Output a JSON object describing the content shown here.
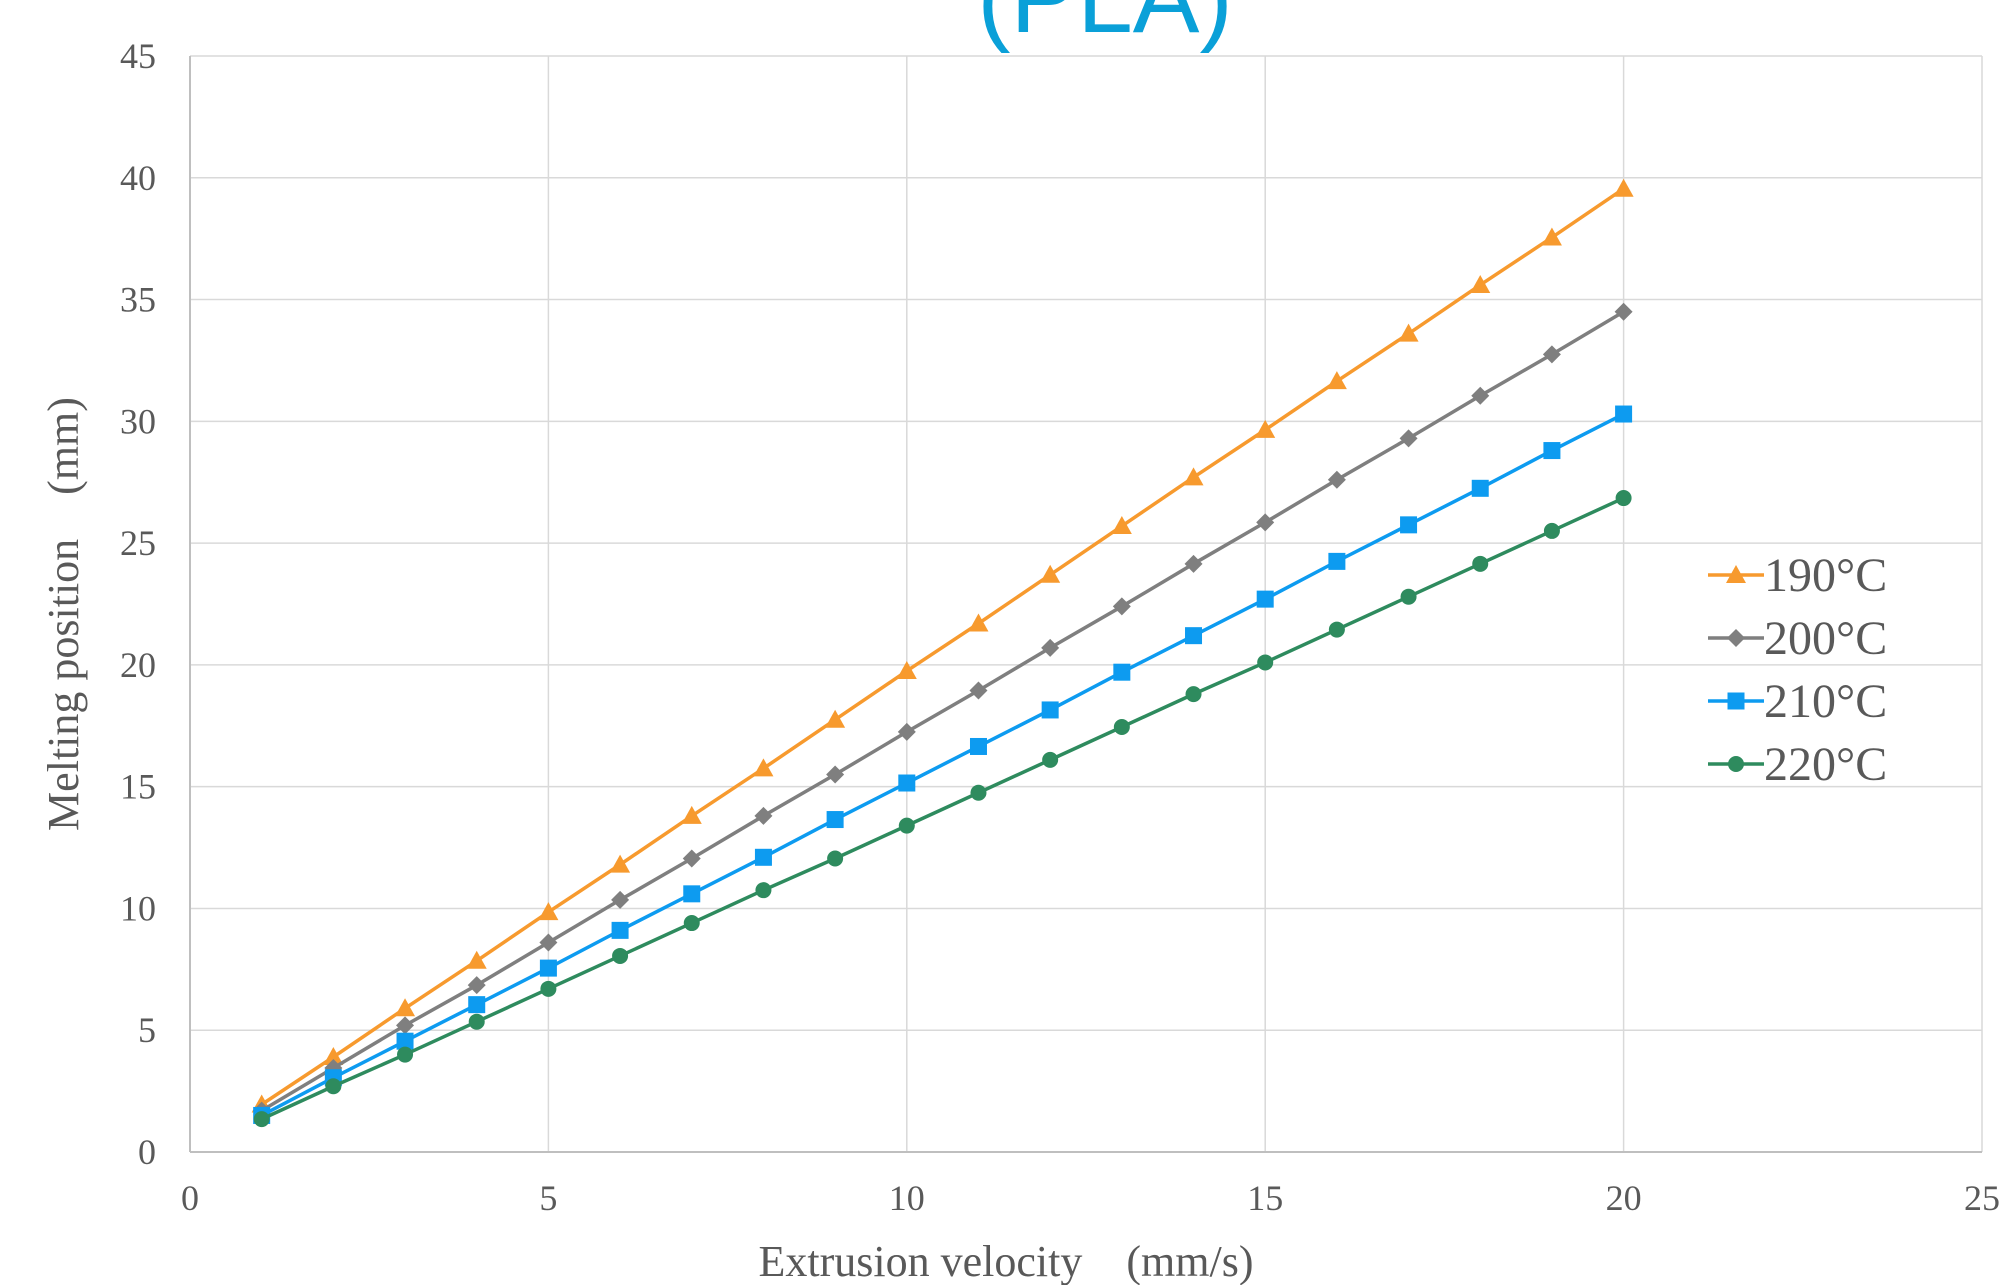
{
  "chart_data": {
    "type": "line",
    "title": "(PLA)",
    "xlabel": "Extrusion velocity　(mm/s)",
    "ylabel": "Melting position　(mm)",
    "xlim": [
      0,
      25
    ],
    "ylim": [
      0,
      45
    ],
    "x_ticks": [
      "0",
      "5",
      "10",
      "15",
      "20",
      "25"
    ],
    "y_ticks": [
      "0",
      "5",
      "10",
      "15",
      "20",
      "25",
      "30",
      "35",
      "40",
      "45"
    ],
    "grid": true,
    "legend_position": "right",
    "x": [
      1,
      2,
      3,
      4,
      5,
      6,
      7,
      8,
      9,
      10,
      11,
      12,
      13,
      14,
      15,
      16,
      17,
      18,
      19,
      20
    ],
    "series": [
      {
        "name": "190°C",
        "color": "#F79A2E",
        "marker": "triangle",
        "values": [
          1.95,
          3.9,
          5.9,
          7.85,
          9.85,
          11.8,
          13.8,
          15.75,
          17.75,
          19.75,
          21.7,
          23.7,
          25.7,
          27.7,
          29.65,
          31.65,
          33.6,
          35.6,
          37.55,
          39.55
        ]
      },
      {
        "name": "200°C",
        "color": "#7F7F7F",
        "marker": "diamond",
        "values": [
          1.7,
          3.45,
          5.2,
          6.85,
          8.6,
          10.35,
          12.05,
          13.8,
          15.5,
          17.25,
          18.95,
          20.7,
          22.4,
          24.15,
          25.85,
          27.6,
          29.3,
          31.05,
          32.75,
          34.5
        ]
      },
      {
        "name": "210°C",
        "color": "#0D9BF0",
        "marker": "square",
        "values": [
          1.5,
          3.05,
          4.55,
          6.05,
          7.55,
          9.1,
          10.6,
          12.1,
          13.65,
          15.15,
          16.65,
          18.15,
          19.7,
          21.2,
          22.7,
          24.25,
          25.75,
          27.25,
          28.8,
          30.3
        ]
      },
      {
        "name": "220°C",
        "color": "#2E8B5E",
        "marker": "circle",
        "values": [
          1.35,
          2.7,
          4.0,
          5.35,
          6.7,
          8.05,
          9.4,
          10.75,
          12.05,
          13.4,
          14.75,
          16.1,
          17.45,
          18.8,
          20.1,
          21.45,
          22.8,
          24.15,
          25.5,
          26.85
        ]
      }
    ],
    "title_color": "#0AA0D8",
    "grid_color": "#D9D9D9",
    "axis_color": "#BFBFBF"
  }
}
